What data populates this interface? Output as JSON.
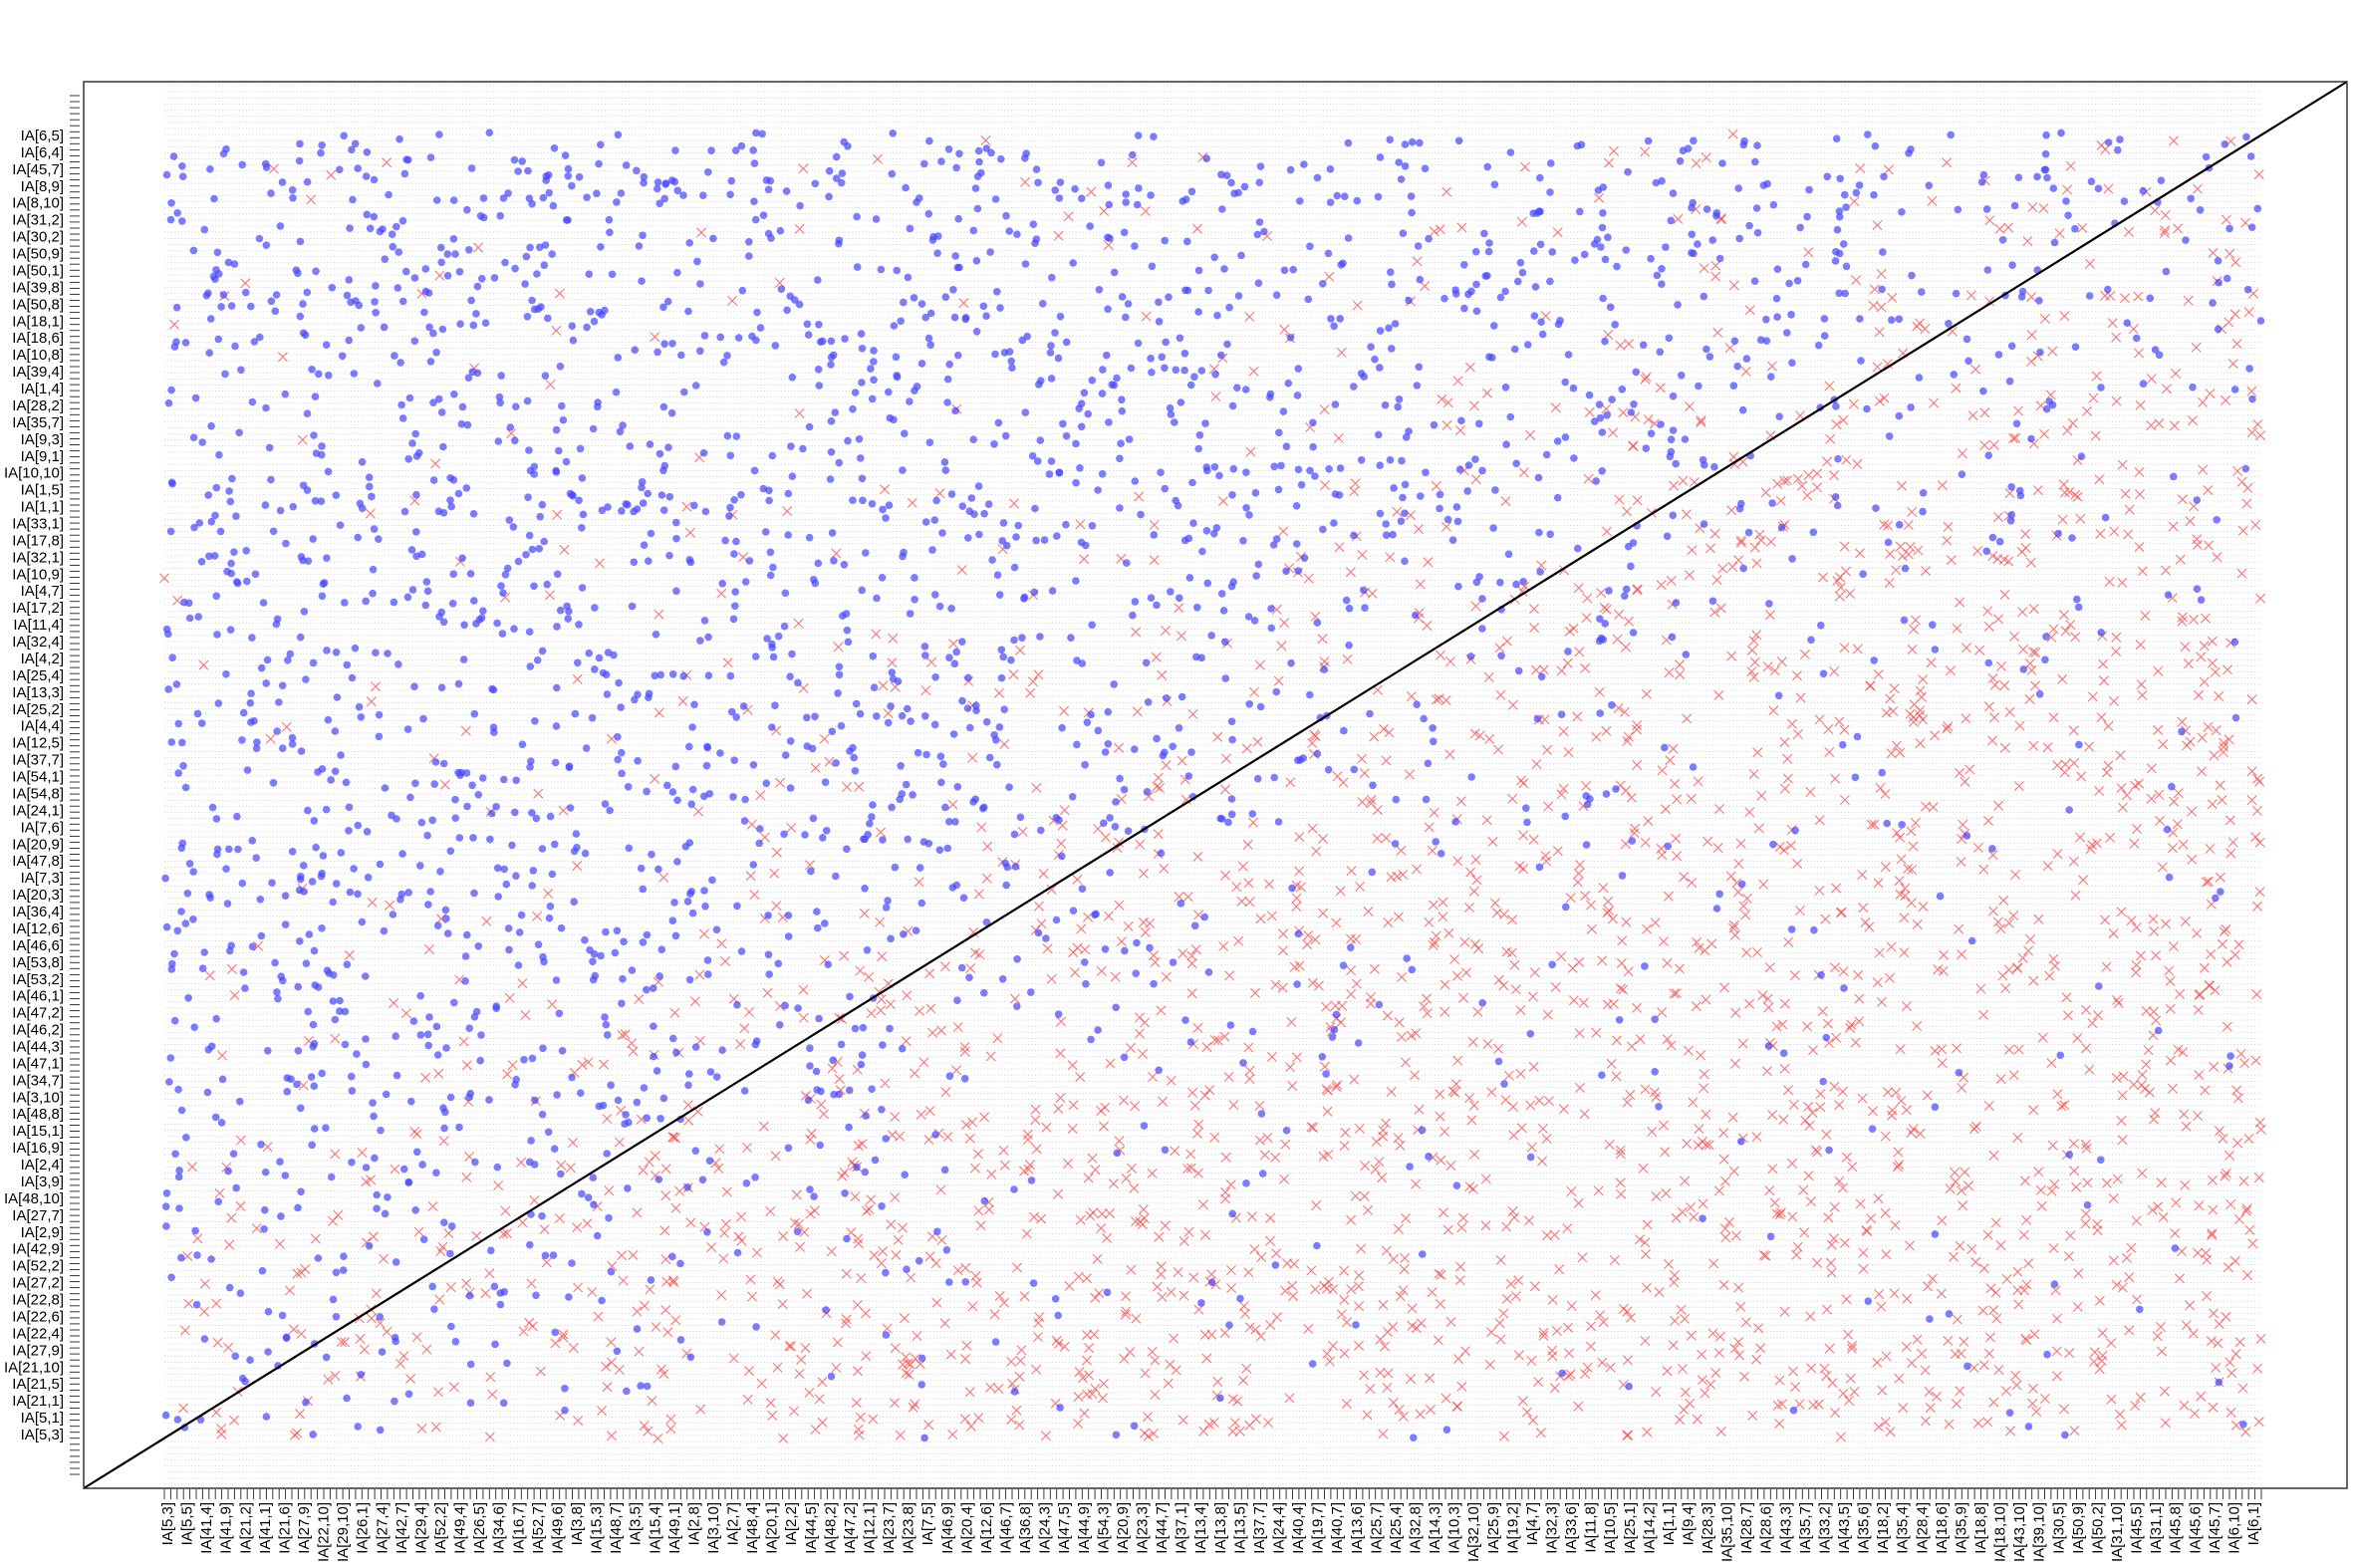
{
  "colors": {
    "background": "#ffffff",
    "grid": "#bdbdbd",
    "frame": "#333333",
    "diagonal": "#000000",
    "point_fill": "#4a4aff",
    "cross": "#ff3a3a"
  },
  "chart_data": {
    "type": "scatter",
    "title": "",
    "xlabel": "",
    "ylabel": "",
    "grid": true,
    "legend": "none",
    "reference_line": "diagonal y = x",
    "series": [
      {
        "marker": "dot",
        "color": "#4a4aff"
      },
      {
        "marker": "cross",
        "color": "#ff3a3a"
      }
    ],
    "y_ticks": [
      "IA[6,5]",
      "IA[6,4]",
      "IA[45,7]",
      "IA[8,9]",
      "IA[8,10]",
      "IA[31,2]",
      "IA[30,2]",
      "IA[50,9]",
      "IA[50,1]",
      "IA[39,8]",
      "IA[50,8]",
      "IA[18,1]",
      "IA[18,6]",
      "IA[10,8]",
      "IA[39,4]",
      "IA[1,4]",
      "IA[28,2]",
      "IA[35,7]",
      "IA[9,3]",
      "IA[9,1]",
      "IA[10,10]",
      "IA[1,5]",
      "IA[1,1]",
      "IA[33,1]",
      "IA[17,8]",
      "IA[32,1]",
      "IA[10,9]",
      "IA[4,7]",
      "IA[17,2]",
      "IA[11,4]",
      "IA[32,4]",
      "IA[4,2]",
      "IA[25,4]",
      "IA[13,3]",
      "IA[25,2]",
      "IA[4,4]",
      "IA[12,5]",
      "IA[37,7]",
      "IA[54,1]",
      "IA[54,8]",
      "IA[24,1]",
      "IA[7,6]",
      "IA[20,9]",
      "IA[47,8]",
      "IA[7,3]",
      "IA[20,3]",
      "IA[36,4]",
      "IA[12,6]",
      "IA[46,6]",
      "IA[53,8]",
      "IA[53,2]",
      "IA[46,1]",
      "IA[47,2]",
      "IA[46,2]",
      "IA[44,3]",
      "IA[47,1]",
      "IA[34,7]",
      "IA[3,10]",
      "IA[48,8]",
      "IA[15,1]",
      "IA[16,9]",
      "IA[2,4]",
      "IA[3,9]",
      "IA[48,10]",
      "IA[27,7]",
      "IA[2,9]",
      "IA[42,9]",
      "IA[52,2]",
      "IA[27,2]",
      "IA[22,8]",
      "IA[22,6]",
      "IA[22,4]",
      "IA[27,9]",
      "IA[21,10]",
      "IA[21,5]",
      "IA[21,1]",
      "IA[5,1]",
      "IA[5,3]"
    ],
    "x_ticks": [
      "IA[5,3]",
      "IA[5,5]",
      "IA[41,4]",
      "IA[41,9]",
      "IA[21,2]",
      "IA[41,1]",
      "IA[21,6]",
      "IA[27,9]",
      "IA[22,10]",
      "IA[29,10]",
      "IA[26,1]",
      "IA[27,4]",
      "IA[42,7]",
      "IA[29,4]",
      "IA[52,2]",
      "IA[49,4]",
      "IA[26,5]",
      "IA[34,6]",
      "IA[16,7]",
      "IA[52,7]",
      "IA[49,6]",
      "IA[3,8]",
      "IA[15,3]",
      "IA[48,7]",
      "IA[3,5]",
      "IA[15,4]",
      "IA[49,1]",
      "IA[2,8]",
      "IA[3,10]",
      "IA[2,7]",
      "IA[48,4]",
      "IA[20,1]",
      "IA[2,2]",
      "IA[44,5]",
      "IA[48,2]",
      "IA[47,2]",
      "IA[12,1]",
      "IA[23,7]",
      "IA[23,8]",
      "IA[7,5]",
      "IA[46,9]",
      "IA[20,4]",
      "IA[12,6]",
      "IA[46,7]",
      "IA[36,8]",
      "IA[24,3]",
      "IA[47,5]",
      "IA[44,9]",
      "IA[54,3]",
      "IA[20,9]",
      "IA[23,3]",
      "IA[44,7]",
      "IA[37,1]",
      "IA[13,4]",
      "IA[13,8]",
      "IA[13,5]",
      "IA[37,7]",
      "IA[24,4]",
      "IA[40,4]",
      "IA[19,7]",
      "IA[40,7]",
      "IA[13,6]",
      "IA[25,7]",
      "IA[25,4]",
      "IA[32,8]",
      "IA[14,3]",
      "IA[10,3]",
      "IA[32,10]",
      "IA[25,9]",
      "IA[19,2]",
      "IA[4,7]",
      "IA[32,3]",
      "IA[33,6]",
      "IA[11,8]",
      "IA[10,5]",
      "IA[25,1]",
      "IA[14,2]",
      "IA[1,1]",
      "IA[9,4]",
      "IA[28,3]",
      "IA[35,10]",
      "IA[28,7]",
      "IA[28,6]",
      "IA[43,3]",
      "IA[35,7]",
      "IA[33,2]",
      "IA[43,5]",
      "IA[35,6]",
      "IA[18,2]",
      "IA[35,4]",
      "IA[28,4]",
      "IA[18,6]",
      "IA[35,9]",
      "IA[18,8]",
      "IA[18,10]",
      "IA[43,10]",
      "IA[39,10]",
      "IA[30,5]",
      "IA[50,9]",
      "IA[50,2]",
      "IA[31,10]",
      "IA[45,5]",
      "IA[31,1]",
      "IA[45,8]",
      "IA[45,6]",
      "IA[45,7]",
      "IA[6,10]",
      "IA[6,1]"
    ]
  }
}
